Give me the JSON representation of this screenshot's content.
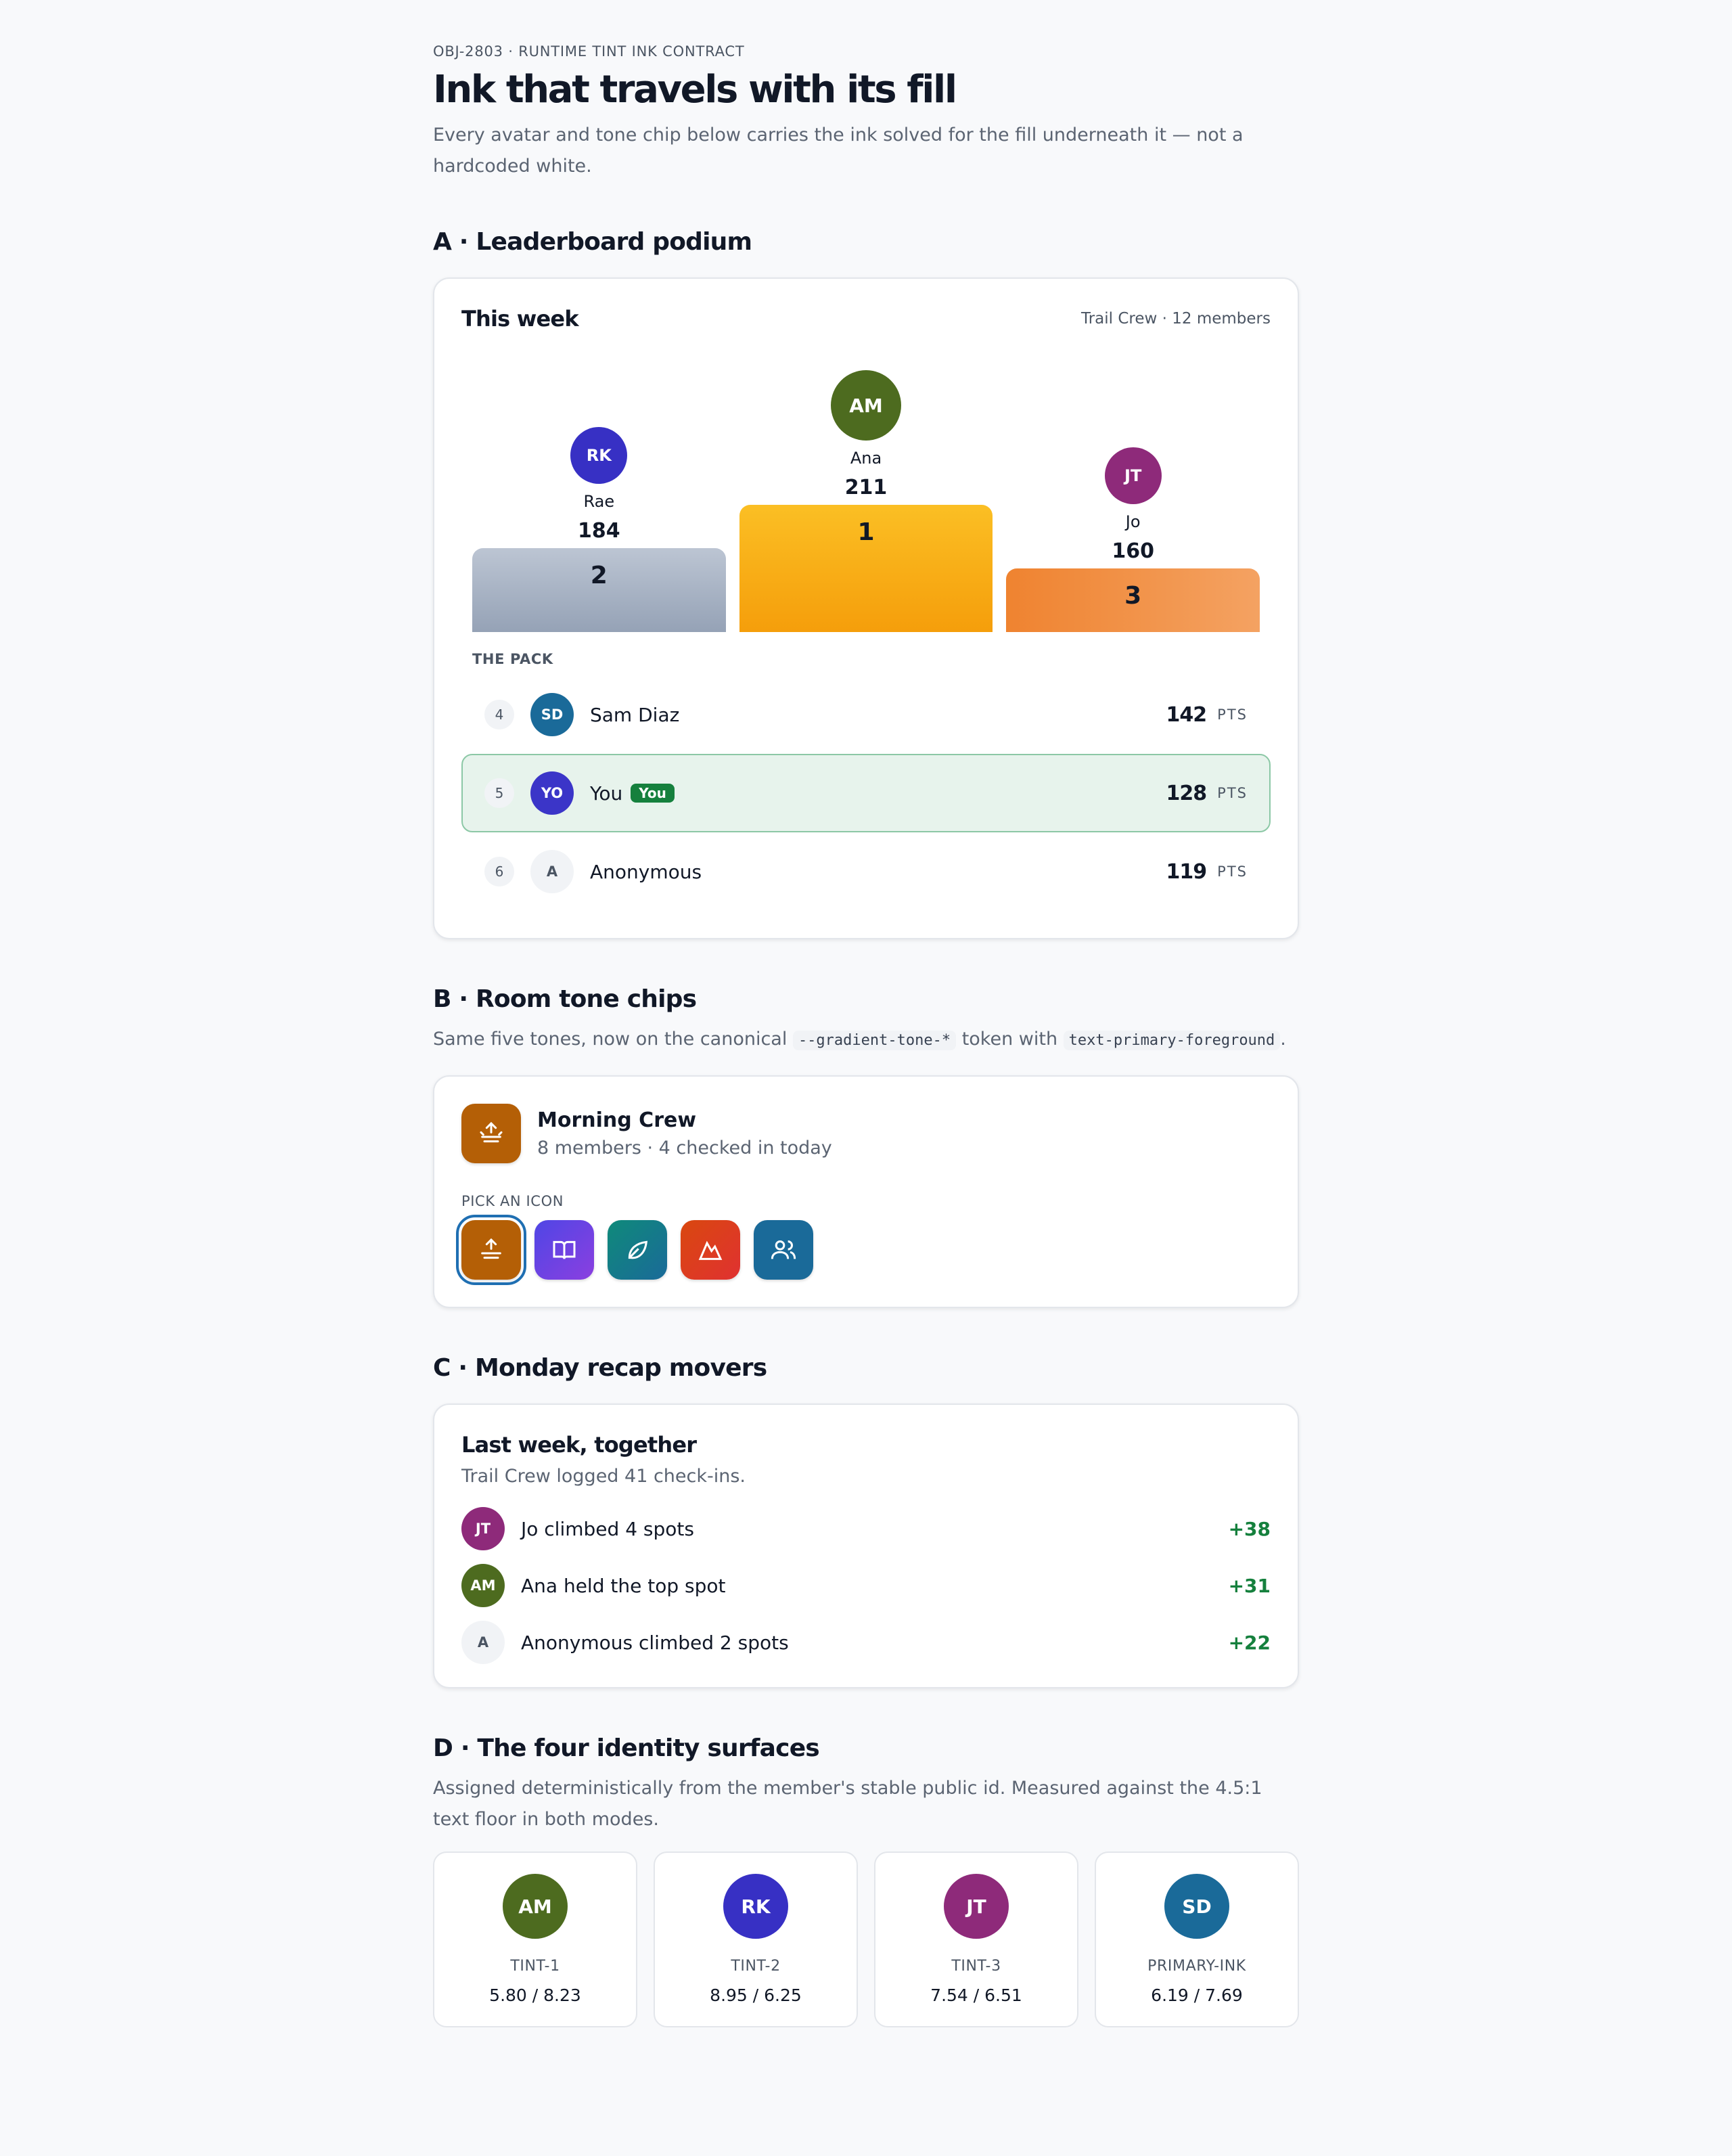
{
  "header": {
    "eyebrow": "OBJ-2803 · RUNTIME TINT INK CONTRACT",
    "title": "Ink that travels with its fill",
    "description": "Every avatar and tone chip below carries the ink solved for the fill underneath it — not a hardcoded white."
  },
  "section_a": {
    "heading": "A · Leaderboard podium",
    "card_title": "This week",
    "card_meta": "Trail Crew · 12 members",
    "podium": [
      {
        "initials": "RK",
        "name": "Rae",
        "points": 184,
        "rank": 2
      },
      {
        "initials": "AM",
        "name": "Ana",
        "points": 211,
        "rank": 1
      },
      {
        "initials": "JT",
        "name": "Jo",
        "points": 160,
        "rank": 3
      }
    ],
    "pack_label": "THE PACK",
    "points_unit": "PTS",
    "pack": [
      {
        "rank": 4,
        "initials": "SD",
        "name": "Sam Diaz",
        "points": 142
      },
      {
        "rank": 5,
        "initials": "YO",
        "name": "You",
        "badge": "You",
        "points": 128
      },
      {
        "rank": 6,
        "initials": "A",
        "name": "Anonymous",
        "points": 119
      }
    ]
  },
  "section_b": {
    "heading": "B · Room tone chips",
    "description": [
      "Same five tones, now on the canonical ",
      "--gradient-tone-*",
      " token with ",
      "text-primary-foreground",
      "."
    ],
    "crew_name": "Morning Crew",
    "crew_meta": "8 members · 4 checked in today",
    "pick_label": "PICK AN ICON"
  },
  "section_c": {
    "heading": "C · Monday recap movers",
    "card_title": "Last week, together",
    "summary": "Trail Crew logged 41 check-ins.",
    "movers": [
      {
        "initials": "JT",
        "text": "Jo climbed 4 spots",
        "delta": "+38"
      },
      {
        "initials": "AM",
        "text": "Ana held the top spot",
        "delta": "+31"
      },
      {
        "initials": "A",
        "text": "Anonymous climbed 2 spots",
        "delta": "+22"
      }
    ]
  },
  "section_d": {
    "heading": "D · The four identity surfaces",
    "description": "Assigned deterministically from the member's stable public id. Measured against the 4.5:1 text floor in both modes.",
    "surfaces": [
      {
        "initials": "AM",
        "label": "TINT-1",
        "ratios": "5.80 / 8.23"
      },
      {
        "initials": "RK",
        "label": "TINT-2",
        "ratios": "8.95 / 6.25"
      },
      {
        "initials": "JT",
        "label": "TINT-3",
        "ratios": "7.54 / 6.51"
      },
      {
        "initials": "SD",
        "label": "PRIMARY-INK",
        "ratios": "6.19 / 7.69"
      }
    ]
  }
}
